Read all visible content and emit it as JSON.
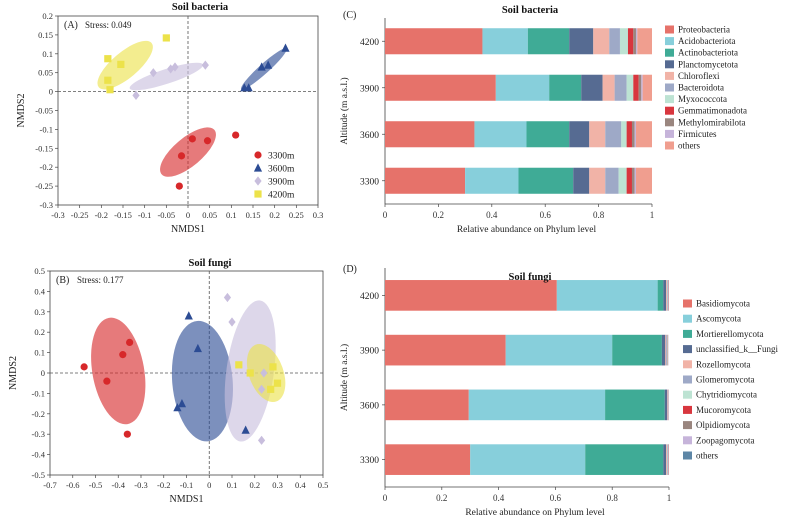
{
  "colors": {
    "scatter": {
      "3300m": "#d7282a",
      "3600m": "#2c4c94",
      "3900m": "#c8bedd",
      "4200m": "#ece24a"
    },
    "bacteria": [
      "#e6726a",
      "#87cfdb",
      "#3fab96",
      "#566b92",
      "#f1b3a7",
      "#9ea9c7",
      "#bde3d3",
      "#d8363e",
      "#9a867f",
      "#c6b4da",
      "#f09e8f"
    ],
    "fungi": [
      "#e6726a",
      "#87cfdb",
      "#3fab96",
      "#566b92",
      "#f1b3a7",
      "#9ea9c7",
      "#bde3d3",
      "#d8363e",
      "#9a867f",
      "#c6b4da",
      "#5d86a6"
    ]
  },
  "chart_data": [
    {
      "id": "A",
      "type": "scatter",
      "panel_label": "(A)",
      "title": "Soil bacteria",
      "stress": "Stress: 0.049",
      "xlabel": "NMDS1",
      "ylabel": "NMDS2",
      "xlim": [
        -0.3,
        0.3
      ],
      "ylim": [
        -0.3,
        0.2
      ],
      "xticks": [
        "-0.3",
        "-0.25",
        "-0.2",
        "-0.15",
        "-0.1",
        "-0.05",
        "0",
        "0.05",
        "0.1",
        "0.15",
        "0.2",
        "0.25",
        "0.3"
      ],
      "yticks": [
        "0.2",
        "0.15",
        "0.1",
        "0.05",
        "0",
        "-0.05",
        "-0.1",
        "-0.15",
        "-0.2",
        "-0.25",
        "-0.3"
      ],
      "legend_position": "bottom-right",
      "series": [
        {
          "name": "3300m",
          "marker": "circle",
          "points": [
            [
              0.01,
              -0.125
            ],
            [
              0.045,
              -0.13
            ],
            [
              0.11,
              -0.115
            ],
            [
              -0.015,
              -0.17
            ],
            [
              -0.02,
              -0.25
            ]
          ],
          "ellipse": {
            "cx": 0.0,
            "cy": -0.16,
            "rx": 0.085,
            "ry": 0.035,
            "angle": 40
          }
        },
        {
          "name": "3600m",
          "marker": "triangle",
          "points": [
            [
              0.13,
              0.01
            ],
            [
              0.14,
              0.01
            ],
            [
              0.17,
              0.065
            ],
            [
              0.185,
              0.07
            ],
            [
              0.225,
              0.115
            ]
          ],
          "ellipse": {
            "cx": 0.175,
            "cy": 0.06,
            "rx": 0.075,
            "ry": 0.012,
            "angle": 42
          }
        },
        {
          "name": "3900m",
          "marker": "diamond",
          "points": [
            [
              -0.08,
              0.05
            ],
            [
              -0.04,
              0.06
            ],
            [
              -0.03,
              0.065
            ],
            [
              0.04,
              0.07
            ],
            [
              -0.12,
              -0.01
            ]
          ],
          "ellipse": {
            "cx": -0.05,
            "cy": 0.04,
            "rx": 0.095,
            "ry": 0.018,
            "angle": 18
          }
        },
        {
          "name": "4200m",
          "marker": "square",
          "points": [
            [
              -0.185,
              0.087
            ],
            [
              -0.155,
              0.072
            ],
            [
              -0.05,
              0.142
            ],
            [
              -0.185,
              0.03
            ],
            [
              -0.18,
              0.005
            ]
          ],
          "ellipse": {
            "cx": -0.145,
            "cy": 0.07,
            "rx": 0.085,
            "ry": 0.032,
            "angle": 40
          }
        }
      ]
    },
    {
      "id": "B",
      "type": "scatter",
      "panel_label": "(B)",
      "title": "Soil fungi",
      "stress": "Stress: 0.177",
      "xlabel": "NMDS1",
      "ylabel": "NMDS2",
      "xlim": [
        -0.7,
        0.5
      ],
      "ylim": [
        -0.5,
        0.5
      ],
      "xticks": [
        "-0.7",
        "-0.6",
        "-0.5",
        "-0.4",
        "-0.3",
        "-0.2",
        "-0.1",
        "0",
        "0.1",
        "0.2",
        "0.3",
        "0.4",
        "0.5"
      ],
      "yticks": [
        "0.5",
        "0.4",
        "0.3",
        "0.2",
        "0.1",
        "0",
        "-0.1",
        "-0.2",
        "-0.3",
        "-0.4",
        "-0.5"
      ],
      "series": [
        {
          "name": "3300m",
          "marker": "circle",
          "points": [
            [
              -0.55,
              0.03
            ],
            [
              -0.45,
              -0.04
            ],
            [
              -0.38,
              0.09
            ],
            [
              -0.35,
              0.15
            ],
            [
              -0.36,
              -0.3
            ]
          ],
          "ellipse": {
            "cx": -0.4,
            "cy": 0.01,
            "rx": 0.25,
            "ry": 0.12,
            "angle": 100
          }
        },
        {
          "name": "3600m",
          "marker": "triangle",
          "points": [
            [
              -0.09,
              0.28
            ],
            [
              -0.05,
              0.12
            ],
            [
              -0.14,
              -0.17
            ],
            [
              -0.12,
              -0.15
            ],
            [
              0.16,
              -0.28
            ]
          ],
          "ellipse": {
            "cx": -0.03,
            "cy": -0.04,
            "rx": 0.28,
            "ry": 0.14,
            "angle": 95
          }
        },
        {
          "name": "3900m",
          "marker": "diamond",
          "points": [
            [
              0.08,
              0.37
            ],
            [
              0.1,
              0.25
            ],
            [
              0.24,
              0.0
            ],
            [
              0.23,
              -0.08
            ],
            [
              0.23,
              -0.33
            ]
          ],
          "ellipse": {
            "cx": 0.18,
            "cy": 0.01,
            "rx": 0.33,
            "ry": 0.11,
            "angle": 82
          }
        },
        {
          "name": "4200m",
          "marker": "square",
          "points": [
            [
              0.13,
              0.04
            ],
            [
              0.18,
              0.0
            ],
            [
              0.28,
              0.03
            ],
            [
              0.3,
              -0.05
            ],
            [
              0.27,
              -0.08
            ]
          ],
          "ellipse": {
            "cx": 0.25,
            "cy": 0.0,
            "rx": 0.14,
            "ry": 0.08,
            "angle": 110
          }
        }
      ]
    },
    {
      "id": "C",
      "type": "bar",
      "orientation": "horizontal-stacked",
      "panel_label": "(C)",
      "title": "Soil bacteria",
      "xlabel": "Relative abundance on Phylum level",
      "ylabel": "Altitude  (m a.s.l.)",
      "xlim": [
        0,
        1
      ],
      "xticks": [
        "0",
        "0.2",
        "0.4",
        "0.6",
        "0.8",
        "1"
      ],
      "categories": [
        "4200",
        "3900",
        "3600",
        "3300"
      ],
      "legend_position": "right",
      "series": [
        {
          "name": "Proteobacteria",
          "values": [
            0.365,
            0.415,
            0.335,
            0.3
          ]
        },
        {
          "name": "Acidobacteriota",
          "values": [
            0.17,
            0.2,
            0.195,
            0.2
          ]
        },
        {
          "name": "Actinobacteriota",
          "values": [
            0.155,
            0.12,
            0.16,
            0.205
          ]
        },
        {
          "name": "Planctomycetota",
          "values": [
            0.09,
            0.08,
            0.075,
            0.06
          ]
        },
        {
          "name": "Chloroflexi",
          "values": [
            0.06,
            0.045,
            0.06,
            0.06
          ]
        },
        {
          "name": "Bacteroidota",
          "values": [
            0.04,
            0.045,
            0.06,
            0.05
          ]
        },
        {
          "name": "Myxococcota",
          "values": [
            0.03,
            0.025,
            0.02,
            0.03
          ]
        },
        {
          "name": "Gemmatimonadota",
          "values": [
            0.02,
            0.02,
            0.02,
            0.02
          ]
        },
        {
          "name": "Methylomirabilota",
          "values": [
            0.01,
            0.01,
            0.01,
            0.01
          ]
        },
        {
          "name": "Firmicutes",
          "values": [
            0.005,
            0.005,
            0.005,
            0.005
          ]
        },
        {
          "name": "others",
          "values": [
            0.055,
            0.035,
            0.06,
            0.06
          ]
        }
      ]
    },
    {
      "id": "D",
      "type": "bar",
      "orientation": "horizontal-stacked",
      "panel_label": "(D)",
      "title": "Soil fungi",
      "xlabel": "Relative abundance on Phylum level",
      "ylabel": "Altitude  (m a.s.l.)",
      "xlim": [
        0,
        1
      ],
      "xticks": [
        "0",
        "0.2",
        "0.4",
        "0.6",
        "0.8",
        "1"
      ],
      "categories": [
        "4200",
        "3900",
        "3600",
        "3300"
      ],
      "legend_position": "right",
      "series": [
        {
          "name": "Basidiomycota",
          "values": [
            0.605,
            0.425,
            0.295,
            0.3
          ]
        },
        {
          "name": "Ascomycota",
          "values": [
            0.355,
            0.375,
            0.48,
            0.405
          ]
        },
        {
          "name": "Mortierellomycota",
          "values": [
            0.02,
            0.175,
            0.21,
            0.275
          ]
        },
        {
          "name": "unclassified_k__Fungi",
          "values": [
            0.01,
            0.012,
            0.008,
            0.01
          ]
        },
        {
          "name": "Rozellomycota",
          "values": [
            0.003,
            0.003,
            0.002,
            0.003
          ]
        },
        {
          "name": "Glomeromycota",
          "values": [
            0.002,
            0.003,
            0.002,
            0.002
          ]
        },
        {
          "name": "Chytridiomycota",
          "values": [
            0.002,
            0.002,
            0.001,
            0.002
          ]
        },
        {
          "name": "Mucoromycota",
          "values": [
            0.001,
            0.001,
            0.001,
            0.001
          ]
        },
        {
          "name": "Olpidiomycota",
          "values": [
            0.001,
            0.001,
            0.0,
            0.001
          ]
        },
        {
          "name": "Zoopagomycota",
          "values": [
            0.001,
            0.001,
            0.001,
            0.001
          ]
        },
        {
          "name": "others",
          "values": [
            0.0,
            0.0,
            0.0,
            0.0
          ]
        }
      ]
    }
  ]
}
